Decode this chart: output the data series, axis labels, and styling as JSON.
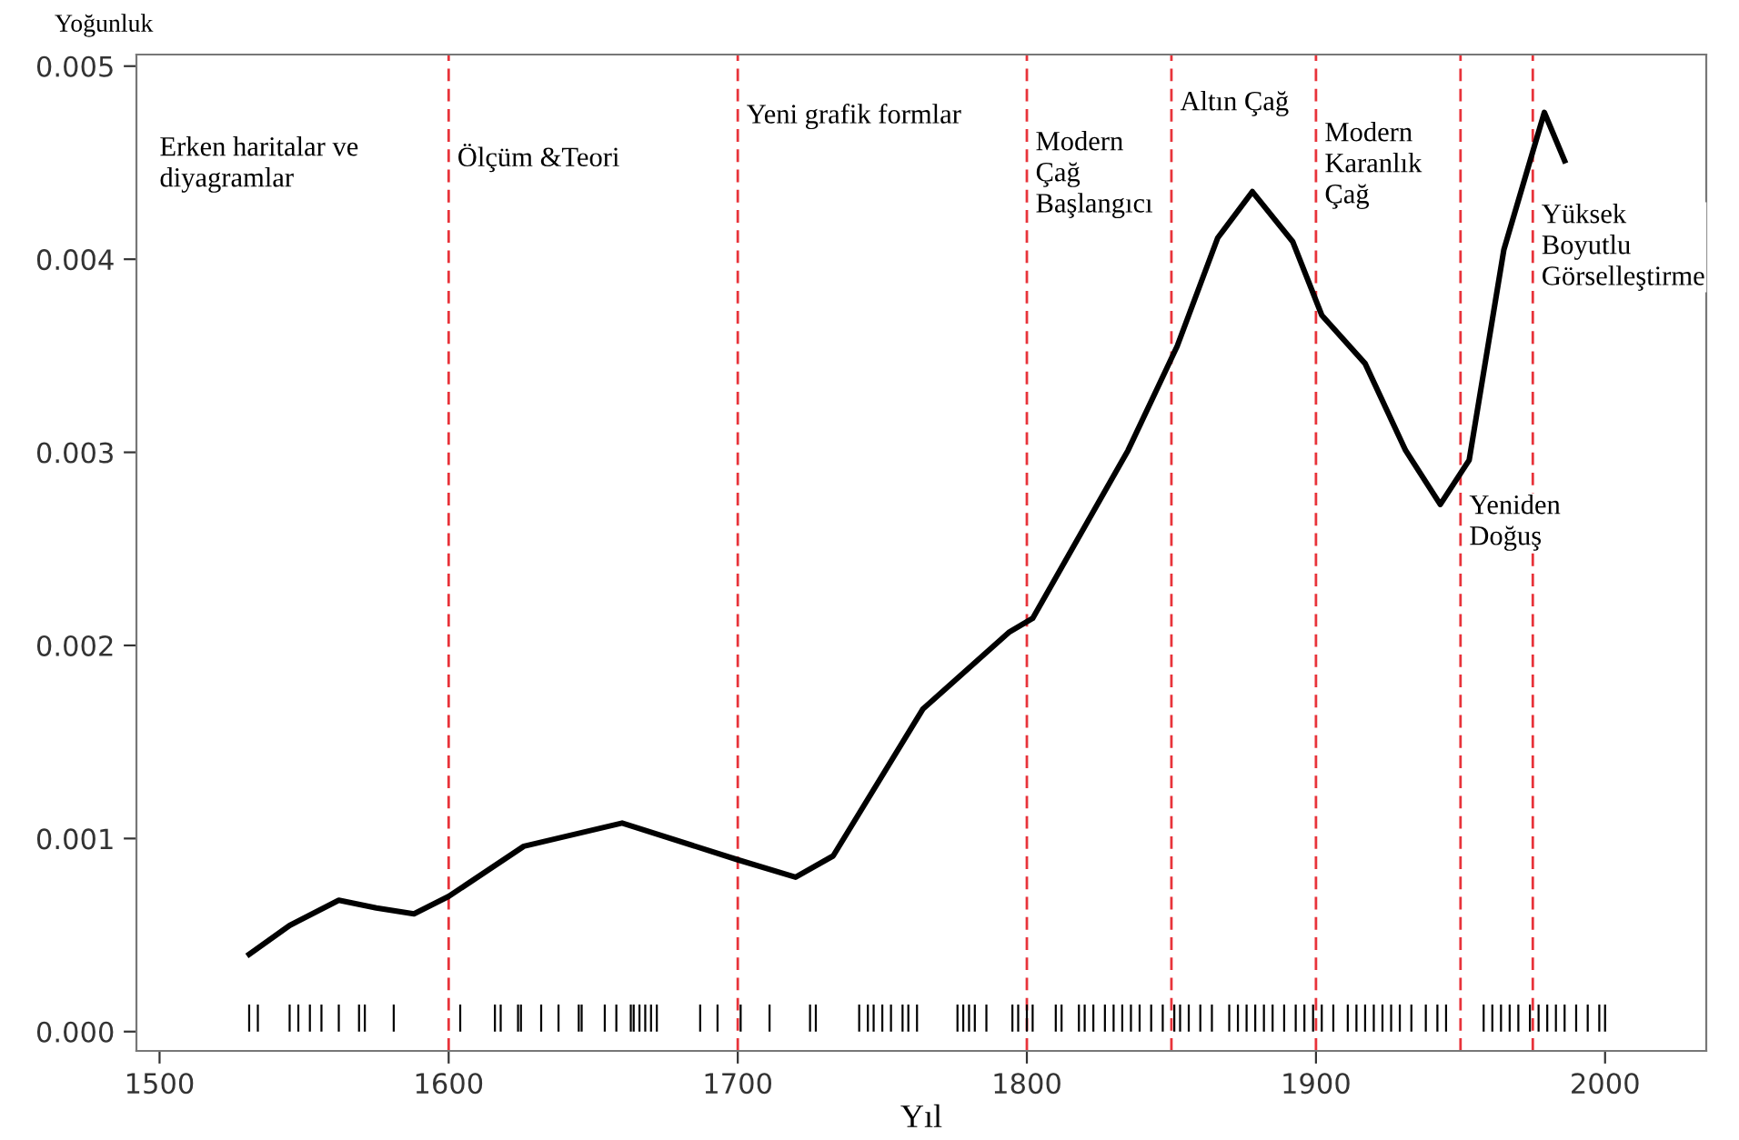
{
  "chart_data": {
    "type": "line",
    "xlabel": "Yıl",
    "ylabel": "Yoğunluk",
    "series": [
      {
        "color": "#000000",
        "x": [
          1531,
          1545,
          1562,
          1575,
          1588,
          1600,
          1626,
          1660,
          1700,
          1720,
          1733,
          1764,
          1794,
          1802,
          1835,
          1852,
          1866,
          1878,
          1892,
          1902,
          1917,
          1931,
          1943,
          1953,
          1965,
          1979,
          1986
        ],
        "values": [
          0.0004,
          0.00055,
          0.00068,
          0.00064,
          0.00061,
          0.0007,
          0.00096,
          0.00108,
          0.00089,
          0.0008,
          0.00091,
          0.00167,
          0.00207,
          0.00214,
          0.00301,
          0.00355,
          0.00411,
          0.00435,
          0.00409,
          0.00371,
          0.00346,
          0.00301,
          0.00273,
          0.00296,
          0.00405,
          0.00476,
          0.00451
        ]
      },
      {
        "type": "bar",
        "color": "#000000",
        "x": [
          1531,
          1534,
          1545,
          1548,
          1552,
          1556,
          1562,
          1569,
          1571,
          1581,
          1604,
          1616,
          1618,
          1624,
          1625,
          1632,
          1638,
          1645,
          1646,
          1654,
          1658,
          1663,
          1664,
          1666,
          1668,
          1670,
          1672,
          1687,
          1693,
          1701,
          1711,
          1725,
          1727,
          1742,
          1745,
          1747,
          1750,
          1753,
          1757,
          1759,
          1762,
          1776,
          1778,
          1780,
          1782,
          1786,
          1795,
          1797,
          1800,
          1802,
          1810,
          1812,
          1818,
          1820,
          1823,
          1827,
          1830,
          1833,
          1836,
          1839,
          1843,
          1847,
          1851,
          1853,
          1856,
          1860,
          1864,
          1870,
          1873,
          1876,
          1879,
          1882,
          1885,
          1889,
          1893,
          1896,
          1899,
          1902,
          1906,
          1911,
          1914,
          1917,
          1920,
          1923,
          1926,
          1929,
          1933,
          1938,
          1942,
          1945,
          1958,
          1961,
          1964,
          1967,
          1970,
          1974,
          1977,
          1980,
          1983,
          1986,
          1990,
          1994,
          1998,
          2000
        ],
        "values": [
          0.00014,
          0.00014,
          0.00014,
          0.00014,
          0.00014,
          0.00014,
          0.00014,
          0.00014,
          0.00014,
          0.00014,
          0.00014,
          0.00014,
          0.00014,
          0.00014,
          0.00014,
          0.00014,
          0.00014,
          0.00014,
          0.00014,
          0.00014,
          0.00014,
          0.00014,
          0.00014,
          0.00014,
          0.00014,
          0.00014,
          0.00014,
          0.00014,
          0.00014,
          0.00014,
          0.00014,
          0.00014,
          0.00014,
          0.00014,
          0.00014,
          0.00014,
          0.00014,
          0.00014,
          0.00014,
          0.00014,
          0.00014,
          0.00014,
          0.00014,
          0.00014,
          0.00014,
          0.00014,
          0.00014,
          0.00014,
          0.00014,
          0.00014,
          0.00014,
          0.00014,
          0.00014,
          0.00014,
          0.00014,
          0.00014,
          0.00014,
          0.00014,
          0.00014,
          0.00014,
          0.00014,
          0.00014,
          0.00014,
          0.00014,
          0.00014,
          0.00014,
          0.00014,
          0.00014,
          0.00014,
          0.00014,
          0.00014,
          0.00014,
          0.00014,
          0.00014,
          0.00014,
          0.00014,
          0.00014,
          0.00014,
          0.00014,
          0.00014,
          0.00014,
          0.00014,
          0.00014,
          0.00014,
          0.00014,
          0.00014,
          0.00014,
          0.00014,
          0.00014,
          0.00014,
          0.00014,
          0.00014,
          0.00014,
          0.00014,
          0.00014,
          0.00014,
          0.00014,
          0.00014,
          0.00014,
          0.00014,
          0.00014,
          0.00014,
          0.00014,
          0.00014
        ]
      }
    ],
    "xlim": [
      1492,
      2035
    ],
    "xticks": [
      1500,
      1600,
      1700,
      1800,
      1900,
      2000
    ],
    "ylim": [
      -0.0001,
      0.00506
    ],
    "yticks": [
      {
        "value": 0,
        "label": "0.000"
      },
      {
        "value": 0.001,
        "label": "0.001"
      },
      {
        "value": 0.002,
        "label": "0.002"
      },
      {
        "value": 0.003,
        "label": "0.003"
      },
      {
        "value": 0.004,
        "label": "0.004"
      },
      {
        "value": 0.005,
        "label": "0.005"
      }
    ],
    "ref_lines": [
      {
        "axis": "x",
        "value": 1600,
        "color": "#e8333a",
        "line_style": "dashed"
      },
      {
        "axis": "x",
        "value": 1700,
        "color": "#e8333a",
        "line_style": "dashed"
      },
      {
        "axis": "x",
        "value": 1800,
        "color": "#e8333a",
        "line_style": "dashed"
      },
      {
        "axis": "x",
        "value": 1850,
        "color": "#e8333a",
        "line_style": "dashed"
      },
      {
        "axis": "x",
        "value": 1900,
        "color": "#e8333a",
        "line_style": "dashed"
      },
      {
        "axis": "x",
        "value": 1950,
        "color": "#e8333a",
        "line_style": "dashed"
      },
      {
        "axis": "x",
        "value": 1975,
        "color": "#e8333a",
        "line_style": "dashed"
      }
    ],
    "annotations": [
      "Erken haritalar ve\ndiyagramlar",
      "Ölçüm &Teori",
      "Yeni grafik formlar",
      "Modern\nÇağ\nBaşlangıcı",
      "Altın Çağ",
      "Modern\nKaranlık\nÇağ",
      "Yeniden\nDoğuş",
      "Yüksek\nBoyutlu\nGörselleştirme"
    ],
    "grid": false,
    "legend": false
  }
}
